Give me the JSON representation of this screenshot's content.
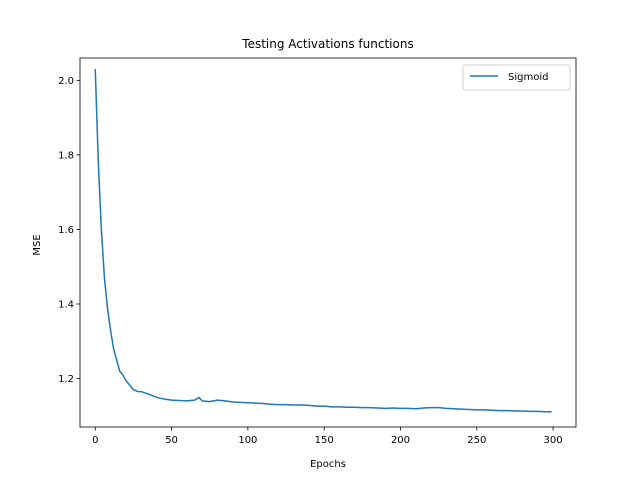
{
  "chart_data": {
    "type": "line",
    "title": "Testing Activations functions",
    "xlabel": "Epochs",
    "ylabel": "MSE",
    "xlim": [
      -10,
      315
    ],
    "ylim": [
      1.07,
      2.06
    ],
    "xticks": [
      0,
      50,
      100,
      150,
      200,
      250,
      300
    ],
    "xtick_labels": [
      "0",
      "50",
      "100",
      "150",
      "200",
      "250",
      "300"
    ],
    "yticks": [
      1.2,
      1.4,
      1.6,
      1.8,
      2.0
    ],
    "ytick_labels": [
      "1.2",
      "1.4",
      "1.6",
      "1.8",
      "2.0"
    ],
    "grid": false,
    "legend_position": "top-right",
    "series": [
      {
        "name": "Sigmoid",
        "color": "#1f77b4",
        "x": [
          0,
          2,
          4,
          6,
          8,
          10,
          12,
          14,
          16,
          18,
          20,
          22,
          25,
          28,
          30,
          35,
          40,
          45,
          50,
          55,
          60,
          65,
          68,
          70,
          75,
          80,
          85,
          90,
          95,
          100,
          105,
          110,
          115,
          120,
          125,
          130,
          135,
          140,
          145,
          150,
          155,
          160,
          165,
          170,
          175,
          180,
          185,
          190,
          195,
          200,
          205,
          210,
          215,
          220,
          225,
          230,
          235,
          240,
          245,
          250,
          255,
          260,
          265,
          270,
          275,
          280,
          285,
          290,
          295,
          299
        ],
        "y": [
          2.03,
          1.78,
          1.6,
          1.47,
          1.39,
          1.33,
          1.28,
          1.25,
          1.22,
          1.21,
          1.195,
          1.185,
          1.17,
          1.165,
          1.165,
          1.158,
          1.15,
          1.145,
          1.142,
          1.141,
          1.14,
          1.142,
          1.149,
          1.14,
          1.138,
          1.142,
          1.14,
          1.137,
          1.136,
          1.135,
          1.134,
          1.133,
          1.131,
          1.13,
          1.13,
          1.129,
          1.129,
          1.128,
          1.126,
          1.126,
          1.124,
          1.124,
          1.123,
          1.123,
          1.122,
          1.122,
          1.121,
          1.12,
          1.121,
          1.12,
          1.12,
          1.119,
          1.121,
          1.122,
          1.122,
          1.12,
          1.119,
          1.118,
          1.117,
          1.116,
          1.116,
          1.115,
          1.114,
          1.114,
          1.113,
          1.113,
          1.112,
          1.112,
          1.111,
          1.111
        ]
      }
    ]
  }
}
